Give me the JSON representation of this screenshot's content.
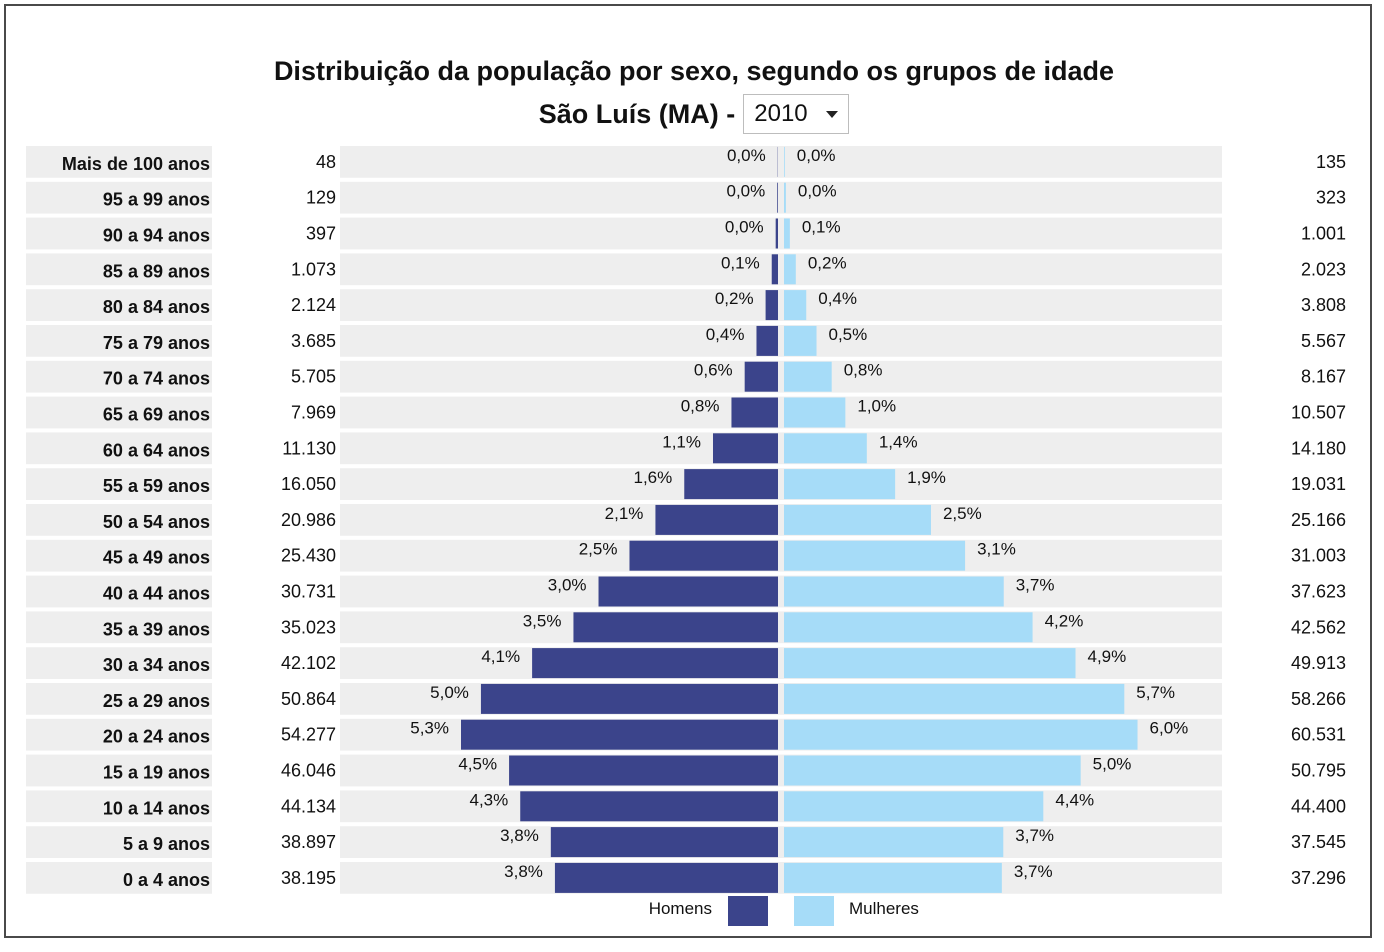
{
  "chart_data": {
    "type": "bar",
    "title": "Distribuição da população por sexo, segundo os grupos de idade",
    "subtitle": "São Luís (MA) -",
    "year_select": {
      "selected": "2010"
    },
    "categories": [
      "Mais de 100 anos",
      "95 a 99 anos",
      "90 a 94 anos",
      "85 a 89 anos",
      "80 a 84 anos",
      "75 a 79 anos",
      "70 a 74 anos",
      "65 a 69 anos",
      "60 a 64 anos",
      "55 a 59 anos",
      "50 a 54 anos",
      "45 a 49 anos",
      "40 a 44 anos",
      "35 a 39 anos",
      "30 a 34 anos",
      "25 a 29 anos",
      "20 a 24 anos",
      "15 a 19 anos",
      "10 a 14 anos",
      "5 a 9 anos",
      "0 a 4 anos"
    ],
    "series": [
      {
        "name": "Homens",
        "color": "#3b448b",
        "counts": [
          "48",
          "129",
          "397",
          "1.073",
          "2.124",
          "3.685",
          "5.705",
          "7.969",
          "11.130",
          "16.050",
          "20.986",
          "25.430",
          "30.731",
          "35.023",
          "42.102",
          "50.864",
          "54.277",
          "46.046",
          "44.134",
          "38.897",
          "38.195"
        ],
        "values": [
          48,
          129,
          397,
          1073,
          2124,
          3685,
          5705,
          7969,
          11130,
          16050,
          20986,
          25430,
          30731,
          35023,
          42102,
          50864,
          54277,
          46046,
          44134,
          38897,
          38195
        ],
        "percent_labels": [
          "0,0%",
          "0,0%",
          "0,0%",
          "0,1%",
          "0,2%",
          "0,4%",
          "0,6%",
          "0,8%",
          "1,1%",
          "1,6%",
          "2,1%",
          "2,5%",
          "3,0%",
          "3,5%",
          "4,1%",
          "5,0%",
          "5,3%",
          "4,5%",
          "4,3%",
          "3,8%",
          "3,8%"
        ]
      },
      {
        "name": "Mulheres",
        "color": "#a6dcf8",
        "counts": [
          "135",
          "323",
          "1.001",
          "2.023",
          "3.808",
          "5.567",
          "8.167",
          "10.507",
          "14.180",
          "19.031",
          "25.166",
          "31.003",
          "37.623",
          "42.562",
          "49.913",
          "58.266",
          "60.531",
          "50.795",
          "44.400",
          "37.545",
          "37.296"
        ],
        "values": [
          135,
          323,
          1001,
          2023,
          3808,
          5567,
          8167,
          10507,
          14180,
          19031,
          25166,
          31003,
          37623,
          42562,
          49913,
          58266,
          60531,
          50795,
          44400,
          37545,
          37296
        ],
        "percent_labels": [
          "0,0%",
          "0,0%",
          "0,1%",
          "0,2%",
          "0,4%",
          "0,5%",
          "0,8%",
          "1,0%",
          "1,4%",
          "1,9%",
          "2,5%",
          "3,1%",
          "3,7%",
          "4,2%",
          "4,9%",
          "5,7%",
          "6,0%",
          "5,0%",
          "4,4%",
          "3,7%",
          "3,7%"
        ]
      }
    ],
    "legend": {
      "position": "bottom-center",
      "items": [
        "Homens",
        "Mulheres"
      ]
    },
    "row_background": "#eeeeee"
  }
}
